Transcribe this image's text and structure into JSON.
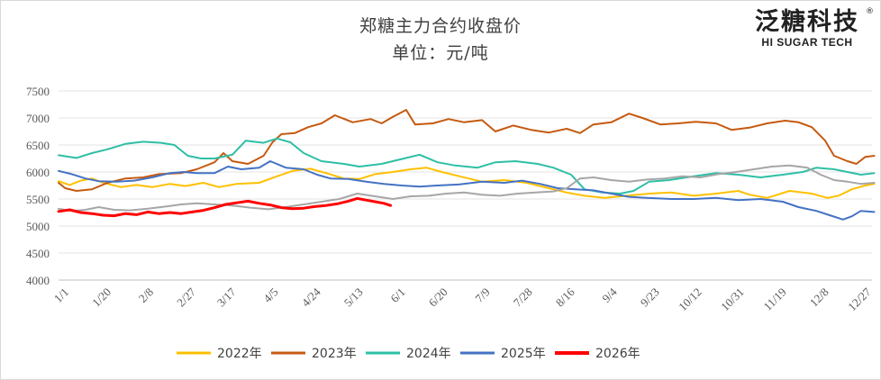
{
  "chart_data": {
    "type": "line",
    "title": "郑糖主力合约收盘价",
    "subtitle": "单位：元/吨",
    "logo": {
      "text": "泛糖科技",
      "sub": "HI SUGAR TECH",
      "mark": "®"
    },
    "x_ticks": [
      "1/1",
      "1/20",
      "2/8",
      "2/27",
      "3/17",
      "4/5",
      "4/24",
      "5/13",
      "6/1",
      "6/20",
      "7/9",
      "7/28",
      "8/16",
      "9/4",
      "9/23",
      "10/12",
      "10/31",
      "11/19",
      "12/8",
      "12/27"
    ],
    "x_tick_days": [
      0,
      19,
      38,
      57,
      75,
      94,
      113,
      132,
      151,
      170,
      189,
      208,
      227,
      246,
      265,
      284,
      303,
      322,
      341,
      360
    ],
    "y_ticks": [
      4000,
      4500,
      5000,
      5500,
      6000,
      6500,
      7000,
      7500
    ],
    "ylim": [
      4000,
      7500
    ],
    "xlim": [
      0,
      365
    ],
    "grid": true,
    "legend": "bottom",
    "series": [
      {
        "name": "2022年",
        "color": "#FFC000",
        "width": 2,
        "points": [
          [
            0,
            5830
          ],
          [
            5,
            5760
          ],
          [
            10,
            5840
          ],
          [
            15,
            5880
          ],
          [
            20,
            5800
          ],
          [
            28,
            5720
          ],
          [
            35,
            5760
          ],
          [
            42,
            5720
          ],
          [
            50,
            5780
          ],
          [
            57,
            5740
          ],
          [
            65,
            5800
          ],
          [
            72,
            5720
          ],
          [
            80,
            5780
          ],
          [
            90,
            5800
          ],
          [
            98,
            5920
          ],
          [
            105,
            6020
          ],
          [
            113,
            6060
          ],
          [
            120,
            5980
          ],
          [
            128,
            5880
          ],
          [
            135,
            5870
          ],
          [
            142,
            5960
          ],
          [
            150,
            6000
          ],
          [
            158,
            6050
          ],
          [
            165,
            6080
          ],
          [
            172,
            6000
          ],
          [
            180,
            5920
          ],
          [
            190,
            5820
          ],
          [
            200,
            5850
          ],
          [
            210,
            5800
          ],
          [
            220,
            5700
          ],
          [
            228,
            5620
          ],
          [
            236,
            5560
          ],
          [
            245,
            5520
          ],
          [
            255,
            5560
          ],
          [
            265,
            5600
          ],
          [
            275,
            5620
          ],
          [
            285,
            5560
          ],
          [
            295,
            5600
          ],
          [
            305,
            5650
          ],
          [
            310,
            5580
          ],
          [
            318,
            5520
          ],
          [
            328,
            5650
          ],
          [
            338,
            5600
          ],
          [
            345,
            5520
          ],
          [
            350,
            5560
          ],
          [
            356,
            5680
          ],
          [
            362,
            5750
          ],
          [
            366,
            5780
          ]
        ]
      },
      {
        "name": "2023年",
        "color": "#C55A11",
        "width": 2,
        "points": [
          [
            0,
            5800
          ],
          [
            3,
            5700
          ],
          [
            8,
            5650
          ],
          [
            15,
            5680
          ],
          [
            22,
            5800
          ],
          [
            30,
            5880
          ],
          [
            38,
            5900
          ],
          [
            45,
            5960
          ],
          [
            55,
            5980
          ],
          [
            62,
            6050
          ],
          [
            70,
            6180
          ],
          [
            74,
            6350
          ],
          [
            78,
            6200
          ],
          [
            85,
            6150
          ],
          [
            92,
            6300
          ],
          [
            96,
            6550
          ],
          [
            100,
            6700
          ],
          [
            106,
            6720
          ],
          [
            112,
            6830
          ],
          [
            118,
            6900
          ],
          [
            124,
            7050
          ],
          [
            132,
            6920
          ],
          [
            140,
            6980
          ],
          [
            145,
            6900
          ],
          [
            150,
            7020
          ],
          [
            156,
            7150
          ],
          [
            160,
            6880
          ],
          [
            168,
            6900
          ],
          [
            175,
            6980
          ],
          [
            182,
            6920
          ],
          [
            190,
            6960
          ],
          [
            196,
            6750
          ],
          [
            204,
            6860
          ],
          [
            212,
            6780
          ],
          [
            220,
            6730
          ],
          [
            228,
            6800
          ],
          [
            234,
            6720
          ],
          [
            240,
            6880
          ],
          [
            248,
            6920
          ],
          [
            256,
            7080
          ],
          [
            262,
            7000
          ],
          [
            270,
            6880
          ],
          [
            278,
            6900
          ],
          [
            286,
            6930
          ],
          [
            295,
            6900
          ],
          [
            302,
            6780
          ],
          [
            310,
            6820
          ],
          [
            318,
            6900
          ],
          [
            326,
            6950
          ],
          [
            332,
            6920
          ],
          [
            338,
            6830
          ],
          [
            344,
            6580
          ],
          [
            348,
            6300
          ],
          [
            354,
            6200
          ],
          [
            358,
            6150
          ],
          [
            362,
            6280
          ],
          [
            366,
            6300
          ]
        ]
      },
      {
        "name": "2024年",
        "color": "#2EBFA5",
        "width": 2,
        "points": [
          [
            0,
            6310
          ],
          [
            8,
            6260
          ],
          [
            15,
            6350
          ],
          [
            22,
            6420
          ],
          [
            30,
            6520
          ],
          [
            38,
            6560
          ],
          [
            46,
            6540
          ],
          [
            52,
            6500
          ],
          [
            58,
            6300
          ],
          [
            64,
            6250
          ],
          [
            70,
            6250
          ],
          [
            78,
            6320
          ],
          [
            84,
            6580
          ],
          [
            92,
            6540
          ],
          [
            98,
            6620
          ],
          [
            104,
            6550
          ],
          [
            110,
            6350
          ],
          [
            118,
            6200
          ],
          [
            128,
            6150
          ],
          [
            135,
            6100
          ],
          [
            145,
            6150
          ],
          [
            155,
            6250
          ],
          [
            162,
            6320
          ],
          [
            170,
            6180
          ],
          [
            178,
            6120
          ],
          [
            188,
            6080
          ],
          [
            196,
            6180
          ],
          [
            205,
            6200
          ],
          [
            215,
            6150
          ],
          [
            222,
            6080
          ],
          [
            230,
            5950
          ],
          [
            236,
            5680
          ],
          [
            244,
            5620
          ],
          [
            252,
            5600
          ],
          [
            258,
            5650
          ],
          [
            265,
            5820
          ],
          [
            274,
            5850
          ],
          [
            285,
            5920
          ],
          [
            295,
            5980
          ],
          [
            305,
            5950
          ],
          [
            315,
            5900
          ],
          [
            325,
            5950
          ],
          [
            334,
            6000
          ],
          [
            340,
            6080
          ],
          [
            348,
            6050
          ],
          [
            354,
            6000
          ],
          [
            360,
            5950
          ],
          [
            366,
            5980
          ]
        ]
      },
      {
        "name": "2025年",
        "color": "#4472C4",
        "width": 2,
        "points": [
          [
            0,
            6020
          ],
          [
            6,
            5960
          ],
          [
            12,
            5880
          ],
          [
            18,
            5830
          ],
          [
            26,
            5820
          ],
          [
            34,
            5840
          ],
          [
            42,
            5900
          ],
          [
            50,
            5980
          ],
          [
            56,
            6000
          ],
          [
            62,
            5980
          ],
          [
            70,
            5980
          ],
          [
            76,
            6100
          ],
          [
            82,
            6050
          ],
          [
            90,
            6080
          ],
          [
            95,
            6200
          ],
          [
            102,
            6080
          ],
          [
            110,
            6050
          ],
          [
            116,
            5950
          ],
          [
            122,
            5880
          ],
          [
            130,
            5870
          ],
          [
            138,
            5820
          ],
          [
            146,
            5780
          ],
          [
            154,
            5750
          ],
          [
            162,
            5730
          ],
          [
            170,
            5750
          ],
          [
            180,
            5770
          ],
          [
            190,
            5820
          ],
          [
            200,
            5800
          ],
          [
            208,
            5840
          ],
          [
            216,
            5780
          ],
          [
            224,
            5700
          ],
          [
            232,
            5680
          ],
          [
            240,
            5660
          ],
          [
            248,
            5600
          ],
          [
            256,
            5540
          ],
          [
            264,
            5520
          ],
          [
            275,
            5500
          ],
          [
            285,
            5500
          ],
          [
            295,
            5520
          ],
          [
            305,
            5480
          ],
          [
            315,
            5500
          ],
          [
            325,
            5450
          ],
          [
            332,
            5350
          ],
          [
            340,
            5280
          ],
          [
            346,
            5200
          ],
          [
            352,
            5120
          ],
          [
            356,
            5180
          ],
          [
            360,
            5280
          ],
          [
            366,
            5260
          ]
        ]
      },
      {
        "name": "",
        "color": "#A6A6A6",
        "width": 2,
        "points": [
          [
            0,
            5320
          ],
          [
            6,
            5280
          ],
          [
            12,
            5300
          ],
          [
            18,
            5350
          ],
          [
            25,
            5300
          ],
          [
            32,
            5290
          ],
          [
            40,
            5320
          ],
          [
            48,
            5360
          ],
          [
            55,
            5400
          ],
          [
            62,
            5420
          ],
          [
            70,
            5400
          ],
          [
            78,
            5380
          ],
          [
            86,
            5340
          ],
          [
            94,
            5310
          ],
          [
            102,
            5350
          ],
          [
            110,
            5400
          ],
          [
            118,
            5450
          ],
          [
            126,
            5500
          ],
          [
            134,
            5600
          ],
          [
            142,
            5550
          ],
          [
            150,
            5500
          ],
          [
            158,
            5550
          ],
          [
            166,
            5560
          ],
          [
            174,
            5600
          ],
          [
            182,
            5620
          ],
          [
            190,
            5580
          ],
          [
            198,
            5560
          ],
          [
            206,
            5600
          ],
          [
            214,
            5620
          ],
          [
            222,
            5640
          ],
          [
            228,
            5700
          ],
          [
            234,
            5880
          ],
          [
            240,
            5900
          ],
          [
            248,
            5850
          ],
          [
            256,
            5820
          ],
          [
            264,
            5860
          ],
          [
            272,
            5880
          ],
          [
            280,
            5920
          ],
          [
            288,
            5900
          ],
          [
            296,
            5960
          ],
          [
            304,
            6000
          ],
          [
            312,
            6050
          ],
          [
            320,
            6100
          ],
          [
            328,
            6120
          ],
          [
            336,
            6080
          ],
          [
            342,
            5950
          ],
          [
            348,
            5850
          ],
          [
            354,
            5820
          ],
          [
            360,
            5780
          ],
          [
            366,
            5800
          ]
        ]
      },
      {
        "name": "2026年",
        "color": "#FF0000",
        "width": 3,
        "points": [
          [
            0,
            5270
          ],
          [
            5,
            5300
          ],
          [
            10,
            5250
          ],
          [
            15,
            5230
          ],
          [
            20,
            5200
          ],
          [
            25,
            5190
          ],
          [
            30,
            5230
          ],
          [
            35,
            5210
          ],
          [
            40,
            5260
          ],
          [
            45,
            5230
          ],
          [
            50,
            5250
          ],
          [
            55,
            5230
          ],
          [
            60,
            5260
          ],
          [
            65,
            5290
          ],
          [
            70,
            5340
          ],
          [
            75,
            5400
          ],
          [
            80,
            5430
          ],
          [
            85,
            5460
          ],
          [
            90,
            5420
          ],
          [
            95,
            5390
          ],
          [
            100,
            5340
          ],
          [
            105,
            5320
          ],
          [
            110,
            5330
          ],
          [
            115,
            5360
          ],
          [
            120,
            5380
          ],
          [
            125,
            5410
          ],
          [
            130,
            5460
          ],
          [
            134,
            5510
          ],
          [
            138,
            5480
          ],
          [
            142,
            5450
          ],
          [
            146,
            5420
          ],
          [
            149,
            5380
          ]
        ]
      }
    ]
  }
}
